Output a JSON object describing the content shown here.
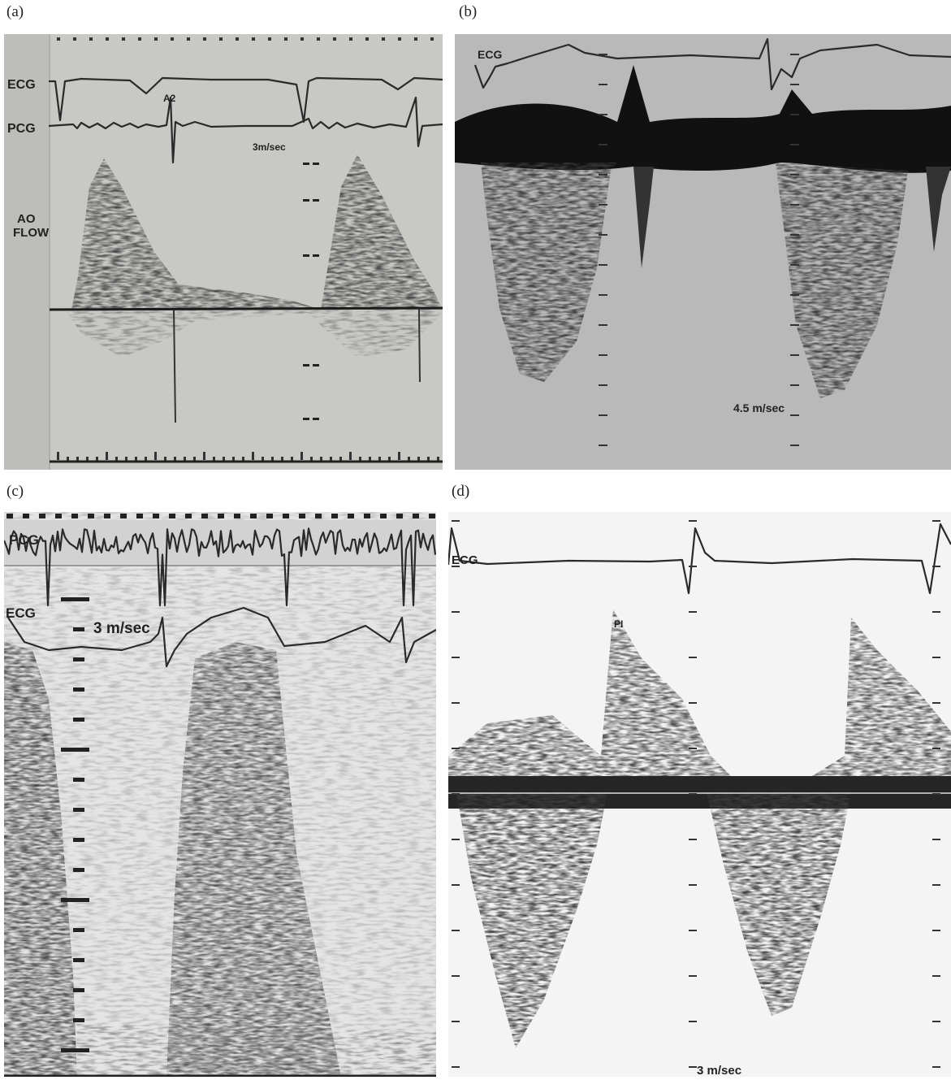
{
  "panels": [
    {
      "label": "(a)",
      "annotations": [
        "ECG",
        "PCG",
        "A2",
        "3m/sec",
        "AO",
        "FLOW"
      ]
    },
    {
      "label": "(b)",
      "annotations": [
        "ECG",
        "4.5 m/sec"
      ]
    },
    {
      "label": "(c)",
      "annotations": [
        "PCG",
        "ECG",
        "3 m/sec"
      ]
    },
    {
      "label": "(d)",
      "annotations": [
        "ECG",
        "PI",
        "3 m/sec"
      ]
    }
  ]
}
